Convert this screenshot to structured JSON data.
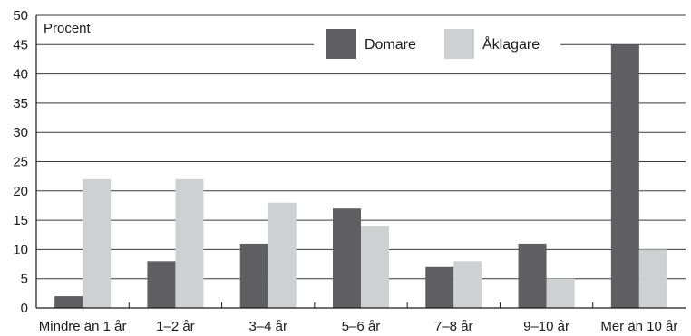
{
  "chart_data": {
    "type": "bar",
    "ylabel": "Procent",
    "ylim": [
      0,
      50
    ],
    "yticks": [
      0,
      5,
      10,
      15,
      20,
      25,
      30,
      35,
      40,
      45,
      50
    ],
    "categories": [
      "Mindre än 1 år",
      "1–2 år",
      "3–4 år",
      "5–6 år",
      "7–8 år",
      "9–10 år",
      "Mer än 10 år"
    ],
    "series": [
      {
        "name": "Domare",
        "color": "#5f5f62",
        "values": [
          2,
          8,
          11,
          17,
          7,
          11,
          45
        ]
      },
      {
        "name": "Åklagare",
        "color": "#cfd0d2",
        "values": [
          22,
          22,
          18,
          14,
          8,
          5,
          10
        ]
      }
    ],
    "grid": "horizontal",
    "legend_position": "top-center"
  }
}
